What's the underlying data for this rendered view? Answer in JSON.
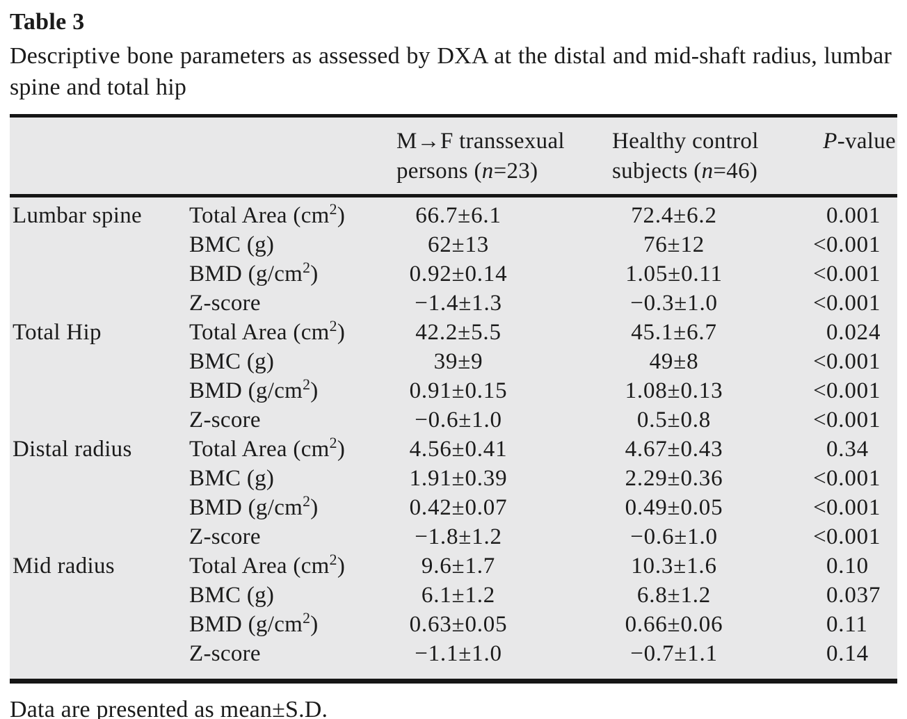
{
  "title": "Table 3",
  "caption": "Descriptive bone parameters as assessed by DXA at the distal and mid-shaft radius, lumbar spine and total hip",
  "footnote": "Data are presented as mean±S.D.",
  "colors": {
    "table_bg": "#e8e8e9",
    "rule": "#161616",
    "text": "#1b1b1b"
  },
  "header": {
    "group1": {
      "line1": "M→F transsexual",
      "line2_pre": "persons (",
      "line2_n": "n",
      "line2_post": "=23)"
    },
    "group2": {
      "line1": "Healthy control",
      "line2_pre": "subjects (",
      "line2_n": "n",
      "line2_post": "=46)"
    },
    "pcol": {
      "italic": "P",
      "rest": "-value"
    }
  },
  "table": {
    "rows": [
      {
        "region": "Lumbar spine",
        "param_pre": "Total Area (cm",
        "param_sup": "2",
        "param_post": ")",
        "mf": "66.7±6.1",
        "hc": "72.4±6.2",
        "p_lt": "",
        "p_val": "0.001"
      },
      {
        "region": "",
        "param_pre": "BMC (g)",
        "param_sup": "",
        "param_post": "",
        "mf": "62±13",
        "hc": "76±12",
        "p_lt": "<",
        "p_val": "0.001"
      },
      {
        "region": "",
        "param_pre": "BMD (g/cm",
        "param_sup": "2",
        "param_post": ")",
        "mf": "0.92±0.14",
        "hc": "1.05±0.11",
        "p_lt": "<",
        "p_val": "0.001"
      },
      {
        "region": "",
        "param_pre": "Z-score",
        "param_sup": "",
        "param_post": "",
        "mf": "−1.4±1.3",
        "hc": "−0.3±1.0",
        "p_lt": "<",
        "p_val": "0.001"
      },
      {
        "region": "Total Hip",
        "param_pre": "Total Area (cm",
        "param_sup": "2",
        "param_post": ")",
        "mf": "42.2±5.5",
        "hc": "45.1±6.7",
        "p_lt": "",
        "p_val": "0.024"
      },
      {
        "region": "",
        "param_pre": "BMC (g)",
        "param_sup": "",
        "param_post": "",
        "mf": "39±9",
        "hc": "49±8",
        "p_lt": "<",
        "p_val": "0.001"
      },
      {
        "region": "",
        "param_pre": "BMD (g/cm",
        "param_sup": "2",
        "param_post": ")",
        "mf": "0.91±0.15",
        "hc": "1.08±0.13",
        "p_lt": "<",
        "p_val": "0.001"
      },
      {
        "region": "",
        "param_pre": "Z-score",
        "param_sup": "",
        "param_post": "",
        "mf": "−0.6±1.0",
        "hc": "0.5±0.8",
        "p_lt": "<",
        "p_val": "0.001"
      },
      {
        "region": "Distal radius",
        "param_pre": "Total Area (cm",
        "param_sup": "2",
        "param_post": ")",
        "mf": "4.56±0.41",
        "hc": "4.67±0.43",
        "p_lt": "",
        "p_val": "0.34"
      },
      {
        "region": "",
        "param_pre": "BMC (g)",
        "param_sup": "",
        "param_post": "",
        "mf": "1.91±0.39",
        "hc": "2.29±0.36",
        "p_lt": "<",
        "p_val": "0.001"
      },
      {
        "region": "",
        "param_pre": "BMD (g/cm",
        "param_sup": "2",
        "param_post": ")",
        "mf": "0.42±0.07",
        "hc": "0.49±0.05",
        "p_lt": "<",
        "p_val": "0.001"
      },
      {
        "region": "",
        "param_pre": "Z-score",
        "param_sup": "",
        "param_post": "",
        "mf": "−1.8±1.2",
        "hc": "−0.6±1.0",
        "p_lt": "<",
        "p_val": "0.001"
      },
      {
        "region": "Mid radius",
        "param_pre": "Total Area (cm",
        "param_sup": "2",
        "param_post": ")",
        "mf": "9.6±1.7",
        "hc": "10.3±1.6",
        "p_lt": "",
        "p_val": "0.10"
      },
      {
        "region": "",
        "param_pre": "BMC (g)",
        "param_sup": "",
        "param_post": "",
        "mf": "6.1±1.2",
        "hc": "6.8±1.2",
        "p_lt": "",
        "p_val": "0.037"
      },
      {
        "region": "",
        "param_pre": "BMD (g/cm",
        "param_sup": "2",
        "param_post": ")",
        "mf": "0.63±0.05",
        "hc": "0.66±0.06",
        "p_lt": "",
        "p_val": "0.11"
      },
      {
        "region": "",
        "param_pre": "Z-score",
        "param_sup": "",
        "param_post": "",
        "mf": "−1.1±1.0",
        "hc": "−0.7±1.1",
        "p_lt": "",
        "p_val": "0.14"
      }
    ]
  }
}
